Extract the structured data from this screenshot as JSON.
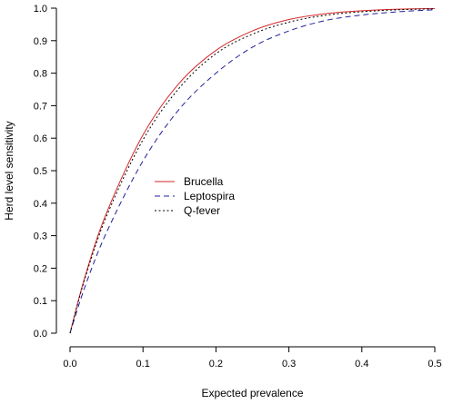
{
  "chart_data": {
    "type": "line",
    "title": "",
    "xlabel": "Expected prevalence",
    "ylabel": "Herd level sensitivity",
    "xlim": [
      0,
      0.5
    ],
    "ylim": [
      0,
      1
    ],
    "xticks": [
      0.0,
      0.1,
      0.2,
      0.3,
      0.4,
      0.5
    ],
    "yticks": [
      0.0,
      0.1,
      0.2,
      0.3,
      0.4,
      0.5,
      0.6,
      0.7,
      0.8,
      0.9,
      1.0
    ],
    "xtick_labels": [
      "0.0",
      "0.1",
      "0.2",
      "0.3",
      "0.4",
      "0.5"
    ],
    "ytick_labels": [
      "0.0",
      "0.1",
      "0.2",
      "0.3",
      "0.4",
      "0.5",
      "0.6",
      "0.7",
      "0.8",
      "0.9",
      "1.0"
    ],
    "grid": false,
    "legend_position": "center-left",
    "x": [
      0.0,
      0.02,
      0.05,
      0.1,
      0.15,
      0.2,
      0.25,
      0.3,
      0.35,
      0.4,
      0.45,
      0.5
    ],
    "series": [
      {
        "name": "Brucella",
        "color": "#d62728",
        "style": "solid",
        "values": [
          0.0,
          0.17,
          0.37,
          0.61,
          0.77,
          0.87,
          0.93,
          0.965,
          0.983,
          0.992,
          0.997,
          0.999
        ]
      },
      {
        "name": "Leptospira",
        "color": "#1f1f9f",
        "style": "dashed",
        "values": [
          0.0,
          0.14,
          0.31,
          0.53,
          0.69,
          0.8,
          0.88,
          0.93,
          0.962,
          0.979,
          0.989,
          0.995
        ]
      },
      {
        "name": "Q-fever",
        "color": "#000000",
        "style": "dotted",
        "values": [
          0.0,
          0.165,
          0.36,
          0.595,
          0.755,
          0.86,
          0.92,
          0.957,
          0.978,
          0.989,
          0.995,
          0.998
        ]
      }
    ]
  }
}
